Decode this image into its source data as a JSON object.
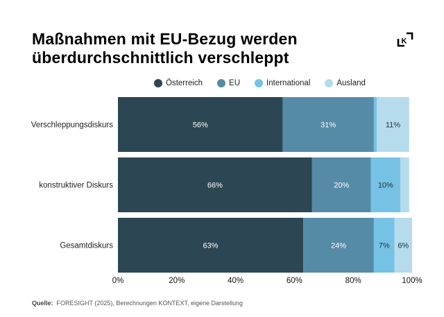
{
  "title_line1": "Maßnahmen mit EU-Bezug werden",
  "title_line2": "überdurchschnittlich verschleppt",
  "logo_text": "K",
  "source_label": "Quelle:",
  "source_text": "FORESIGHT (2025), Berechnungen KONTEXT, eigene Darstellung",
  "colors": {
    "oesterreich": "#2c4653",
    "eu": "#568ba8",
    "international": "#76c2e5",
    "ausland": "#b5dbec"
  },
  "chart_data": {
    "type": "bar",
    "orientation": "horizontal",
    "stacked": true,
    "title": "Maßnahmen mit EU-Bezug werden überdurchschnittlich verschleppt",
    "categories": [
      "Verschleppungsdiskurs",
      "konstruktiver Diskurs",
      "Gesamtdiskurs"
    ],
    "series": [
      {
        "name": "Österreich",
        "values": [
          56,
          66,
          63
        ],
        "labels": [
          "56%",
          "66%",
          "63%"
        ],
        "color_key": "oesterreich",
        "label_color": "#ffffff"
      },
      {
        "name": "EU",
        "values": [
          31,
          20,
          24
        ],
        "labels": [
          "31%",
          "20%",
          "24%"
        ],
        "color_key": "eu",
        "label_color": "#ffffff"
      },
      {
        "name": "International",
        "values": [
          1,
          10,
          7
        ],
        "labels": [
          "",
          "10%",
          "7%"
        ],
        "color_key": "international",
        "label_color": "#1e2f38"
      },
      {
        "name": "Ausland",
        "values": [
          11,
          3,
          6
        ],
        "labels": [
          "11%",
          "",
          "6%"
        ],
        "color_key": "ausland",
        "label_color": "#1e2f38"
      }
    ],
    "xlim": [
      0,
      100
    ],
    "xticks": [
      "0%",
      "20%",
      "40%",
      "60%",
      "80%",
      "100%"
    ],
    "xtick_values": [
      0,
      20,
      40,
      60,
      80,
      100
    ],
    "legend_position": "top",
    "grid": false
  }
}
